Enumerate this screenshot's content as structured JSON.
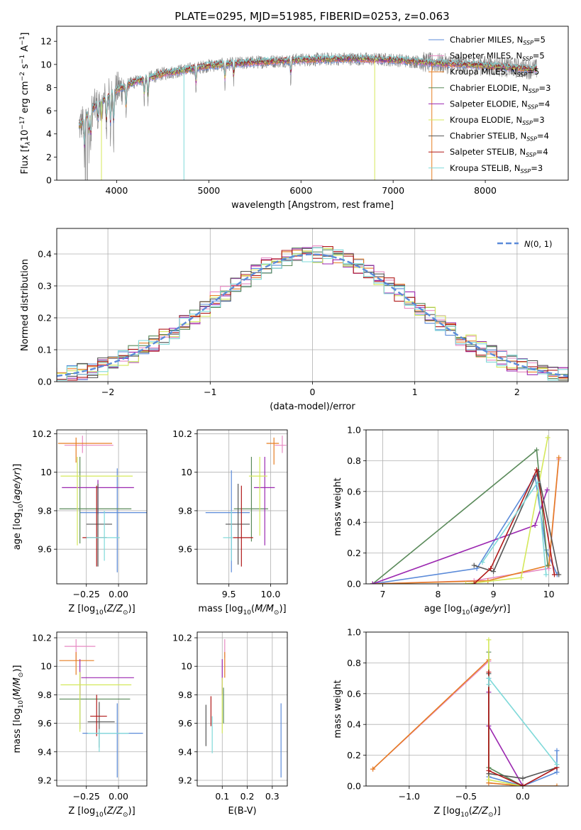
{
  "figure": {
    "title": "PLATE=0295, MJD=51985, FIBERID=0253, z=0.063"
  },
  "colors": {
    "Chabrier MILES": "#5b8bd9",
    "Salpeter MILES": "#e78ac3",
    "Kroupa MILES": "#e67e22",
    "Chabrier ELODIE": "#5a8a5a",
    "Salpeter ELODIE": "#9b27b0",
    "Kroupa ELODIE": "#d4e85a",
    "Chabrier STELIB": "#555555",
    "Salpeter STELIB": "#b01919",
    "Kroupa STELIB": "#7fd9d9",
    "data": "#808080"
  },
  "chart_data": [
    {
      "id": "spectrum",
      "type": "line",
      "xlabel": "wavelength [Angstrom, rest frame]",
      "ylabel": "Flux [f_λ 10^-17 erg cm^-2 s^-1 A^-1]",
      "xlim": [
        3350,
        8900
      ],
      "ylim": [
        0,
        13.3
      ],
      "xticks": [
        4000,
        5000,
        6000,
        7000,
        8000
      ],
      "yticks": [
        0,
        2,
        4,
        6,
        8,
        10,
        12
      ],
      "legend_position": "top-right",
      "legend": [
        {
          "name": "Chabrier MILES",
          "nssp": "5"
        },
        {
          "name": "Salpeter MILES",
          "nssp": "5"
        },
        {
          "name": "Kroupa MILES",
          "nssp": "5"
        },
        {
          "name": "Chabrier ELODIE",
          "nssp": "3"
        },
        {
          "name": "Salpeter ELODIE",
          "nssp": "4"
        },
        {
          "name": "Kroupa ELODIE",
          "nssp": "3"
        },
        {
          "name": "Chabrier STELIB",
          "nssp": "4"
        },
        {
          "name": "Salpeter STELIB",
          "nssp": "4"
        },
        {
          "name": "Kroupa STELIB",
          "nssp": "3"
        }
      ],
      "continuum": {
        "wavelength": [
          3600,
          3700,
          3800,
          3900,
          4000,
          4200,
          4500,
          4800,
          5000,
          5500,
          6000,
          6500,
          7000,
          7500,
          8000,
          8500
        ],
        "flux": [
          4.7,
          5.9,
          6.6,
          7.2,
          7.8,
          8.5,
          9.2,
          9.6,
          9.9,
          10.2,
          10.4,
          10.5,
          10.4,
          10.1,
          9.9,
          9.6
        ]
      }
    },
    {
      "id": "residuals",
      "type": "line",
      "xlabel": "(data-model)/error",
      "ylabel": "Normed distribution",
      "xlim": [
        -2.5,
        2.5
      ],
      "ylim": [
        0,
        0.48
      ],
      "xticks": [
        -2,
        -1,
        0,
        1,
        2
      ],
      "xtick_labels": [
        "−2",
        "−1",
        "0",
        "1",
        "2"
      ],
      "yticks": [
        0.0,
        0.1,
        0.2,
        0.3,
        0.4
      ],
      "ytick_labels": [
        "0.0",
        "0.1",
        "0.2",
        "0.3",
        "0.4"
      ],
      "grid": true,
      "legend_position": "top-right",
      "reference": {
        "name": "N(0,1)",
        "mean": 0,
        "sigma": 1
      }
    },
    {
      "id": "age-vs-Z",
      "type": "scatter",
      "xlabel": "Z [log10(Z/Z⊙)]",
      "ylabel": "age [log10(age/yr)]",
      "xlim": [
        -0.48,
        0.22
      ],
      "ylim": [
        9.42,
        10.22
      ],
      "xticks": [
        -0.25,
        0.0
      ],
      "xtick_labels": [
        "−0.25",
        "0.00"
      ],
      "yticks": [
        9.6,
        9.8,
        10.0,
        10.2
      ],
      "grid": true,
      "points": [
        {
          "series": "Chabrier MILES",
          "x": -0.01,
          "y": 9.79,
          "xlo": -0.3,
          "xhi": 0.22,
          "ylo": 9.48,
          "yhi": 10.02
        },
        {
          "series": "Salpeter MILES",
          "x": -0.28,
          "y": 10.14,
          "xlo": -0.42,
          "xhi": -0.04,
          "ylo": 10.1,
          "yhi": 10.19
        },
        {
          "series": "Kroupa MILES",
          "x": -0.33,
          "y": 10.15,
          "xlo": -0.47,
          "xhi": -0.05,
          "ylo": 10.05,
          "yhi": 10.18
        },
        {
          "series": "Chabrier ELODIE",
          "x": -0.3,
          "y": 9.81,
          "xlo": -0.46,
          "xhi": 0.1,
          "ylo": 9.63,
          "yhi": 10.08
        },
        {
          "series": "Salpeter ELODIE",
          "x": -0.16,
          "y": 9.92,
          "xlo": -0.44,
          "xhi": 0.12,
          "ylo": 9.78,
          "yhi": 9.96
        },
        {
          "series": "Kroupa ELODIE",
          "x": -0.32,
          "y": 9.98,
          "xlo": -0.45,
          "xhi": 0.11,
          "ylo": 9.62,
          "yhi": 10.08
        },
        {
          "series": "Chabrier STELIB",
          "x": -0.16,
          "y": 9.73,
          "xlo": -0.25,
          "xhi": -0.05,
          "ylo": 9.51,
          "yhi": 9.94
        },
        {
          "series": "Salpeter STELIB",
          "x": -0.17,
          "y": 9.66,
          "xlo": -0.28,
          "xhi": -0.09,
          "ylo": 9.51,
          "yhi": 9.93
        },
        {
          "series": "Kroupa STELIB",
          "x": -0.11,
          "y": 9.66,
          "xlo": -0.25,
          "xhi": 0.01,
          "ylo": 9.54,
          "yhi": 9.8
        }
      ]
    },
    {
      "id": "age-vs-mass",
      "type": "scatter",
      "xlabel": "mass [log10(M/M⊙)]",
      "ylabel": "",
      "xlim": [
        9.12,
        10.2
      ],
      "ylim": [
        9.42,
        10.22
      ],
      "xticks": [
        9.5,
        10.0
      ],
      "xtick_labels": [
        "9.5",
        "10.0"
      ],
      "yticks": [
        9.6,
        9.8,
        10.0,
        10.2
      ],
      "grid": true,
      "points": [
        {
          "series": "Chabrier MILES",
          "x": 9.53,
          "y": 9.79,
          "xlo": 9.22,
          "xhi": 9.75,
          "ylo": 9.48,
          "yhi": 10.01
        },
        {
          "series": "Salpeter MILES",
          "x": 10.14,
          "y": 10.14,
          "xlo": 10.05,
          "xhi": 10.19,
          "ylo": 10.1,
          "yhi": 10.19
        },
        {
          "series": "Kroupa MILES",
          "x": 10.04,
          "y": 10.15,
          "xlo": 9.95,
          "xhi": 10.1,
          "ylo": 10.04,
          "yhi": 10.18
        },
        {
          "series": "Chabrier ELODIE",
          "x": 9.77,
          "y": 9.81,
          "xlo": 9.56,
          "xhi": 9.97,
          "ylo": 9.64,
          "yhi": 10.08
        },
        {
          "series": "Salpeter ELODIE",
          "x": 9.93,
          "y": 9.92,
          "xlo": 9.8,
          "xhi": 10.05,
          "ylo": 9.62,
          "yhi": 10.08
        },
        {
          "series": "Kroupa ELODIE",
          "x": 9.87,
          "y": 9.98,
          "xlo": 9.74,
          "xhi": 9.96,
          "ylo": 9.67,
          "yhi": 10.08
        },
        {
          "series": "Chabrier STELIB",
          "x": 9.61,
          "y": 9.73,
          "xlo": 9.46,
          "xhi": 9.75,
          "ylo": 9.52,
          "yhi": 9.94
        },
        {
          "series": "Salpeter STELIB",
          "x": 9.65,
          "y": 9.66,
          "xlo": 9.55,
          "xhi": 9.79,
          "ylo": 9.51,
          "yhi": 9.93
        },
        {
          "series": "Kroupa STELIB",
          "x": 9.53,
          "y": 9.66,
          "xlo": 9.43,
          "xhi": 9.55,
          "ylo": 9.54,
          "yhi": 9.8
        }
      ]
    },
    {
      "id": "massweight-vs-age",
      "type": "line",
      "xlabel": "age [log10(age/yr)]",
      "ylabel": "mass weight",
      "xlim": [
        6.7,
        10.35
      ],
      "ylim": [
        0,
        1.0
      ],
      "xticks": [
        7,
        8,
        9,
        10
      ],
      "yticks": [
        0.0,
        0.2,
        0.4,
        0.6,
        0.8,
        1.0
      ],
      "ytick_labels": [
        "0.0",
        "0.2",
        "0.4",
        "0.6",
        "0.8",
        "1.0"
      ],
      "grid": true,
      "series": [
        {
          "name": "Chabrier MILES",
          "x": [
            6.82,
            8.7,
            9.75,
            9.95,
            10.15
          ],
          "y": [
            0.0,
            0.1,
            0.7,
            0.22,
            0.06
          ]
        },
        {
          "name": "Salpeter MILES",
          "x": [
            6.82,
            8.65,
            10.0,
            10.18
          ],
          "y": [
            0.0,
            0.02,
            0.1,
            0.81
          ]
        },
        {
          "name": "Kroupa MILES",
          "x": [
            6.82,
            8.9,
            10.0,
            10.18
          ],
          "y": [
            0.0,
            0.02,
            0.12,
            0.82
          ]
        },
        {
          "name": "Chabrier ELODIE",
          "x": [
            6.82,
            9.78,
            9.98
          ],
          "y": [
            0.0,
            0.87,
            0.12
          ]
        },
        {
          "name": "Salpeter ELODIE",
          "x": [
            6.82,
            9.75,
            9.97
          ],
          "y": [
            0.0,
            0.38,
            0.61
          ]
        },
        {
          "name": "Kroupa ELODIE",
          "x": [
            8.5,
            9.5,
            9.98
          ],
          "y": [
            0.0,
            0.04,
            0.95
          ]
        },
        {
          "name": "Chabrier STELIB",
          "x": [
            8.65,
            9.0,
            9.8,
            10.18
          ],
          "y": [
            0.12,
            0.08,
            0.73,
            0.06
          ]
        },
        {
          "name": "Salpeter STELIB",
          "x": [
            8.65,
            8.95,
            9.78,
            10.1
          ],
          "y": [
            0.0,
            0.1,
            0.74,
            0.06
          ]
        },
        {
          "name": "Kroupa STELIB",
          "x": [
            8.8,
            9.8,
            9.95
          ],
          "y": [
            0.14,
            0.66,
            0.06
          ]
        }
      ]
    },
    {
      "id": "mass-vs-Z",
      "type": "scatter",
      "xlabel": "Z [log10(Z/Z⊙)]",
      "ylabel": "mass [log10(M/M⊙)]",
      "xlim": [
        -0.48,
        0.22
      ],
      "ylim": [
        9.16,
        10.24
      ],
      "xticks": [
        -0.25,
        0.0
      ],
      "xtick_labels": [
        "−0.25",
        "0.00"
      ],
      "yticks": [
        9.2,
        9.4,
        9.6,
        9.8,
        10.0,
        10.2
      ],
      "grid": true,
      "points": [
        {
          "series": "Chabrier MILES",
          "x": -0.01,
          "y": 9.53,
          "xlo": -0.28,
          "xhi": 0.19,
          "ylo": 9.22,
          "yhi": 9.74
        },
        {
          "series": "Salpeter MILES",
          "x": -0.33,
          "y": 10.14,
          "xlo": -0.42,
          "xhi": -0.18,
          "ylo": 10.04,
          "yhi": 10.19
        },
        {
          "series": "Kroupa MILES",
          "x": -0.33,
          "y": 10.04,
          "xlo": -0.46,
          "xhi": -0.19,
          "ylo": 9.94,
          "yhi": 10.1
        },
        {
          "series": "Chabrier ELODIE",
          "x": -0.3,
          "y": 9.77,
          "xlo": -0.46,
          "xhi": 0.09,
          "ylo": 9.56,
          "yhi": 9.96
        },
        {
          "series": "Salpeter ELODIE",
          "x": -0.3,
          "y": 9.92,
          "xlo": -0.29,
          "xhi": 0.12,
          "ylo": 9.8,
          "yhi": 10.05
        },
        {
          "series": "Kroupa ELODIE",
          "x": -0.3,
          "y": 9.87,
          "xlo": -0.45,
          "xhi": 0.1,
          "ylo": 9.54,
          "yhi": 9.96
        },
        {
          "series": "Chabrier STELIB",
          "x": -0.15,
          "y": 9.61,
          "xlo": -0.24,
          "xhi": -0.03,
          "ylo": 9.43,
          "yhi": 9.75
        },
        {
          "series": "Salpeter STELIB",
          "x": -0.17,
          "y": 9.65,
          "xlo": -0.22,
          "xhi": -0.09,
          "ylo": 9.51,
          "yhi": 9.8
        },
        {
          "series": "Kroupa STELIB",
          "x": -0.15,
          "y": 9.53,
          "xlo": -0.24,
          "xhi": 0.08,
          "ylo": 9.4,
          "yhi": 9.56
        }
      ]
    },
    {
      "id": "mass-vs-ebv",
      "type": "scatter",
      "xlabel": "E(B-V)",
      "ylabel": "",
      "xlim": [
        0.0,
        0.36
      ],
      "ylim": [
        9.16,
        10.24
      ],
      "xticks": [
        0.1,
        0.2,
        0.3
      ],
      "xtick_labels": [
        "0.1",
        "0.2",
        "0.3"
      ],
      "yticks": [
        9.2,
        9.4,
        9.6,
        9.8,
        10.0,
        10.2
      ],
      "grid": true,
      "points": [
        {
          "series": "Chabrier MILES",
          "x": 0.335,
          "y": 9.53,
          "ylo": 9.22,
          "yhi": 9.74
        },
        {
          "series": "Salpeter MILES",
          "x": 0.11,
          "y": 10.14,
          "ylo": 10.06,
          "yhi": 10.19
        },
        {
          "series": "Kroupa MILES",
          "x": 0.11,
          "y": 10.04,
          "ylo": 9.92,
          "yhi": 10.1
        },
        {
          "series": "Chabrier ELODIE",
          "x": 0.105,
          "y": 9.77,
          "ylo": 9.6,
          "yhi": 9.85
        },
        {
          "series": "Salpeter ELODIE",
          "x": 0.1,
          "y": 9.92,
          "ylo": 9.8,
          "yhi": 10.05
        },
        {
          "series": "Kroupa ELODIE",
          "x": 0.1,
          "y": 9.87,
          "ylo": 9.53,
          "yhi": 9.92
        },
        {
          "series": "Chabrier STELIB",
          "x": 0.035,
          "y": 9.61,
          "ylo": 9.44,
          "yhi": 9.73
        },
        {
          "series": "Salpeter STELIB",
          "x": 0.055,
          "y": 9.65,
          "ylo": 9.58,
          "yhi": 9.79
        },
        {
          "series": "Kroupa STELIB",
          "x": 0.06,
          "y": 9.53,
          "ylo": 9.39,
          "yhi": 9.65
        }
      ]
    },
    {
      "id": "massweight-vs-Z",
      "type": "line",
      "xlabel": "Z [log10(Z/Z⊙)]",
      "ylabel": "mass weight",
      "xlim": [
        -1.38,
        0.4
      ],
      "ylim": [
        0,
        1.0
      ],
      "xticks": [
        -1.0,
        -0.5,
        0.0
      ],
      "xtick_labels": [
        "−1.0",
        "−0.5",
        "0.0"
      ],
      "yticks": [
        0.0,
        0.2,
        0.4,
        0.6,
        0.8,
        1.0
      ],
      "ytick_labels": [
        "0.0",
        "0.2",
        "0.4",
        "0.6",
        "0.8",
        "1.0"
      ],
      "grid": true,
      "series": [
        {
          "name": "Chabrier MILES",
          "x": [
            -0.3,
            -0.3,
            0.0,
            0.3,
            0.3
          ],
          "y": [
            0.7,
            0.06,
            0.0,
            0.09,
            0.23
          ]
        },
        {
          "name": "Salpeter MILES",
          "x": [
            -1.32,
            -0.3,
            -0.3,
            0.0
          ],
          "y": [
            0.11,
            0.81,
            0.02,
            0.0
          ]
        },
        {
          "name": "Kroupa MILES",
          "x": [
            -1.32,
            -0.3,
            -0.3,
            0.0,
            0.3
          ],
          "y": [
            0.11,
            0.82,
            0.02,
            0.0,
            0.0
          ]
        },
        {
          "name": "Chabrier ELODIE",
          "x": [
            -0.3,
            -0.3,
            0.0
          ],
          "y": [
            0.87,
            0.12,
            0.0
          ]
        },
        {
          "name": "Salpeter ELODIE",
          "x": [
            -0.3,
            -0.3,
            0.0
          ],
          "y": [
            0.61,
            0.39,
            0.0
          ]
        },
        {
          "name": "Kroupa ELODIE",
          "x": [
            -0.3,
            -0.3,
            0.0
          ],
          "y": [
            0.95,
            0.04,
            0.0
          ]
        },
        {
          "name": "Chabrier STELIB",
          "x": [
            -0.3,
            -0.3,
            0.0,
            0.3
          ],
          "y": [
            0.73,
            0.08,
            0.05,
            0.12
          ]
        },
        {
          "name": "Salpeter STELIB",
          "x": [
            -0.3,
            -0.3,
            0.0,
            0.3
          ],
          "y": [
            0.74,
            0.1,
            0.0,
            0.12
          ]
        },
        {
          "name": "Kroupa STELIB",
          "x": [
            -0.3,
            -0.3,
            0.3
          ],
          "y": [
            0.66,
            0.7,
            0.14
          ]
        }
      ]
    }
  ]
}
